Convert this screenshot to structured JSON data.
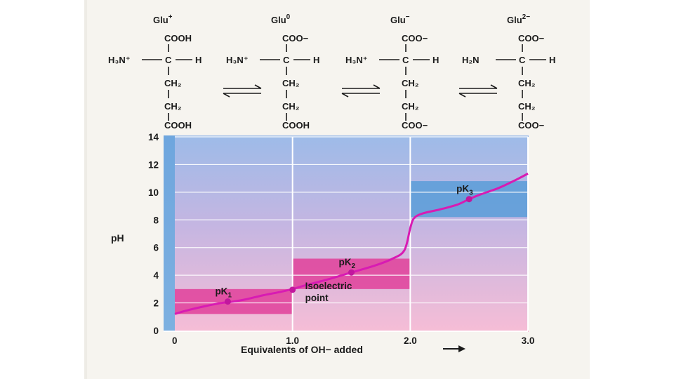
{
  "species": [
    {
      "name": "Glu",
      "charge": "+",
      "top": "COOH",
      "left": "H₃N⁺",
      "center": "C",
      "right": "H",
      "ch2a": "CH₂",
      "ch2b": "CH₂",
      "bottom": "COOH"
    },
    {
      "name": "Glu",
      "charge": "0",
      "top": "COO−",
      "left": "H₃N⁺",
      "center": "C",
      "right": "H",
      "ch2a": "CH₂",
      "ch2b": "CH₂",
      "bottom": "COOH"
    },
    {
      "name": "Glu",
      "charge": "−",
      "top": "COO−",
      "left": "H₃N⁺",
      "center": "C",
      "right": "H",
      "ch2a": "CH₂",
      "ch2b": "CH₂",
      "bottom": "COO−"
    },
    {
      "name": "Glu",
      "charge": "2−",
      "top": "COO−",
      "left": "H₂N",
      "center": "C",
      "right": "H",
      "ch2a": "CH₂",
      "ch2b": "CH₂",
      "bottom": "COO−"
    }
  ],
  "chart_data": {
    "type": "line",
    "title": "",
    "xlabel": "Equivalents of OH− added",
    "ylabel": "pH",
    "xlim": [
      0,
      3.0
    ],
    "ylim": [
      0,
      14
    ],
    "xticks": [
      0,
      1.0,
      2.0,
      3.0
    ],
    "xtick_labels": [
      "0",
      "1.0",
      "2.0",
      "3.0"
    ],
    "yticks": [
      0,
      2,
      4,
      6,
      8,
      10,
      12,
      14
    ],
    "ytick_labels": [
      "0",
      "2",
      "4",
      "6",
      "8",
      "10",
      "12",
      "14"
    ],
    "series": [
      {
        "name": "titration curve",
        "color": "#d81bb3",
        "x": [
          0,
          0.1,
          0.25,
          0.4,
          0.5,
          0.6,
          0.75,
          0.9,
          1.0,
          1.1,
          1.3,
          1.5,
          1.7,
          1.85,
          1.95,
          2.0,
          2.03,
          2.1,
          2.25,
          2.4,
          2.5,
          2.6,
          2.75,
          2.9,
          3.0
        ],
        "y": [
          1.2,
          1.45,
          1.75,
          2.0,
          2.1,
          2.25,
          2.55,
          2.8,
          3.0,
          3.25,
          3.7,
          4.2,
          4.7,
          5.2,
          5.8,
          7.4,
          8.1,
          8.45,
          8.75,
          9.1,
          9.5,
          9.85,
          10.3,
          10.9,
          11.35
        ]
      }
    ],
    "buffer_zones": [
      {
        "label": "pK₁",
        "x_range": [
          0,
          1.0
        ],
        "y_range": [
          1.2,
          3.0
        ],
        "point": [
          0.45,
          2.1
        ],
        "color": "#e0409a"
      },
      {
        "label": "pK₂",
        "x_range": [
          1.0,
          2.0
        ],
        "y_range": [
          3.0,
          5.2
        ],
        "point": [
          1.5,
          4.2
        ],
        "color": "#e0409a"
      },
      {
        "label": "pK₃",
        "x_range": [
          2.0,
          3.0
        ],
        "y_range": [
          8.2,
          10.8
        ],
        "point": [
          2.5,
          9.5
        ],
        "color": "#5e9fd8"
      }
    ],
    "annotations": [
      {
        "text": [
          "Isoelectric",
          "point"
        ],
        "point": [
          1.0,
          3.0
        ]
      }
    ],
    "grid": true,
    "colors": {
      "background_top": "#8fb6e6",
      "background_bottom": "#f4bcd6",
      "left_band": "#5e9fd8",
      "curve": "#d81bb3"
    }
  }
}
